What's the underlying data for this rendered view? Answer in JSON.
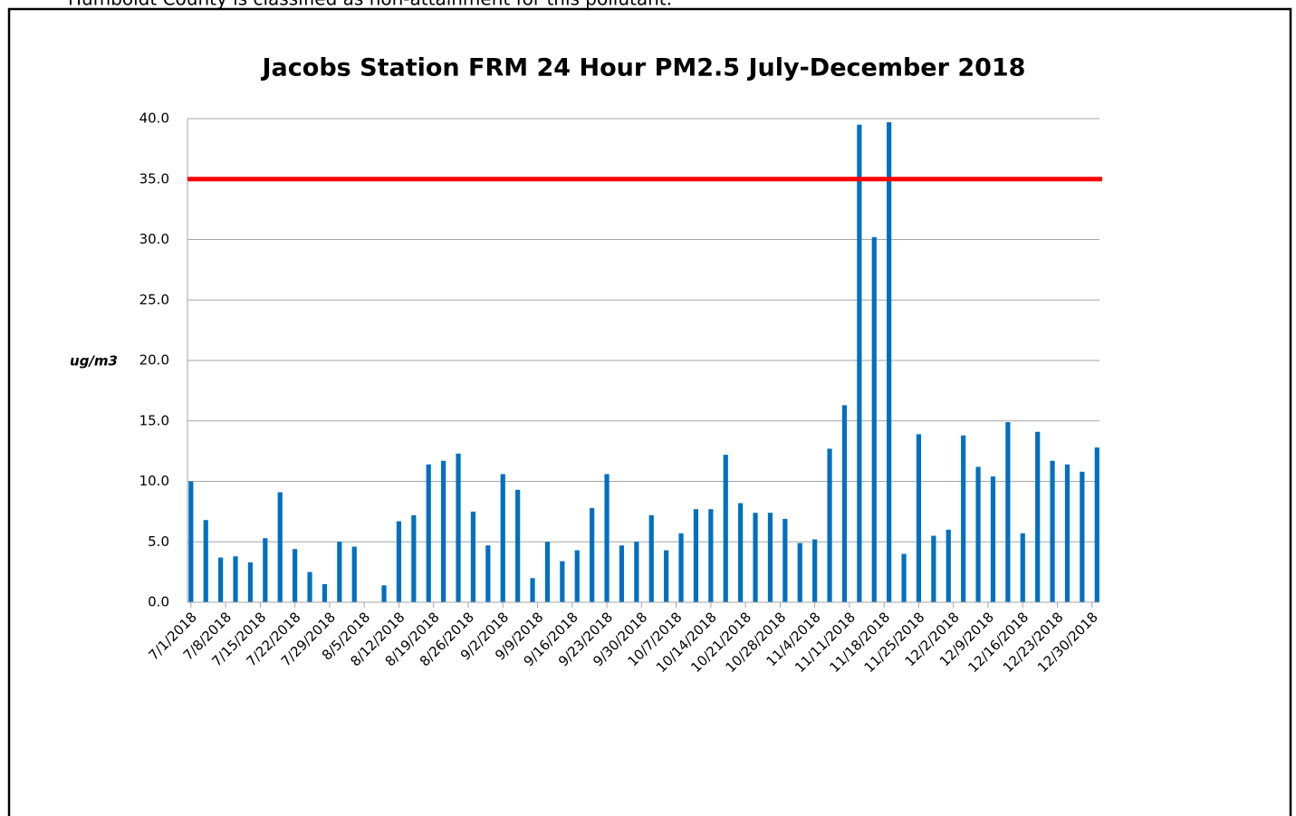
{
  "intro": "Humboldt County is classified as non-attainment for this pollutant.",
  "chart_data": {
    "type": "bar",
    "title": "Jacobs Station FRM 24 Hour PM2.5 July-December 2018",
    "ylabel": "ug/m3",
    "color": "#0070c0",
    "grid": true,
    "threshold": 35,
    "threshold_color": "#ff0000",
    "xlim": [
      -0.7,
      183.5
    ],
    "xticks": [
      {
        "value": 0,
        "label": "7/1/2018"
      },
      {
        "value": 7,
        "label": "7/8/2018"
      },
      {
        "value": 14,
        "label": "7/15/2018"
      },
      {
        "value": 21,
        "label": "7/22/2018"
      },
      {
        "value": 28,
        "label": "7/29/2018"
      },
      {
        "value": 35,
        "label": "8/5/2018"
      },
      {
        "value": 42,
        "label": "8/12/2018"
      },
      {
        "value": 49,
        "label": "8/19/2018"
      },
      {
        "value": 56,
        "label": "8/26/2018"
      },
      {
        "value": 63,
        "label": "9/2/2018"
      },
      {
        "value": 70,
        "label": "9/9/2018"
      },
      {
        "value": 77,
        "label": "9/16/2018"
      },
      {
        "value": 84,
        "label": "9/23/2018"
      },
      {
        "value": 91,
        "label": "9/30/2018"
      },
      {
        "value": 98,
        "label": "10/7/2018"
      },
      {
        "value": 105,
        "label": "10/14/2018"
      },
      {
        "value": 112,
        "label": "10/21/2018"
      },
      {
        "value": 119,
        "label": "10/28/2018"
      },
      {
        "value": 126,
        "label": "11/4/2018"
      },
      {
        "value": 133,
        "label": "11/11/2018"
      },
      {
        "value": 140,
        "label": "11/18/2018"
      },
      {
        "value": 147,
        "label": "11/25/2018"
      },
      {
        "value": 154,
        "label": "12/2/2018"
      },
      {
        "value": 161,
        "label": "12/9/2018"
      },
      {
        "value": 168,
        "label": "12/16/2018"
      },
      {
        "value": 175,
        "label": "12/23/2018"
      },
      {
        "value": 182,
        "label": "12/30/2018"
      }
    ],
    "ylim": [
      0,
      40
    ],
    "yticks": [
      {
        "value": 0,
        "label": "0.0"
      },
      {
        "value": 5,
        "label": "5.0"
      },
      {
        "value": 10,
        "label": "10.0"
      },
      {
        "value": 15,
        "label": "15.0"
      },
      {
        "value": 20,
        "label": "20.0"
      },
      {
        "value": 25,
        "label": "25.0"
      },
      {
        "value": 30,
        "label": "30.0"
      },
      {
        "value": 35,
        "label": "35.0"
      },
      {
        "value": 40,
        "label": "40.0"
      }
    ],
    "x": [
      0,
      3,
      6,
      9,
      12,
      15,
      18,
      21,
      24,
      27,
      30,
      33,
      36,
      39,
      42,
      45,
      48,
      51,
      54,
      57,
      60,
      63,
      66,
      69,
      72,
      75,
      78,
      81,
      84,
      87,
      90,
      93,
      96,
      99,
      102,
      105,
      108,
      111,
      114,
      117,
      120,
      123,
      126,
      129,
      132,
      135,
      138,
      141,
      144,
      147,
      150,
      153,
      156,
      159,
      162,
      165,
      168,
      171,
      174,
      177,
      180,
      183
    ],
    "values": [
      10.0,
      6.8,
      3.7,
      3.8,
      3.3,
      5.3,
      9.1,
      4.4,
      2.5,
      1.5,
      5.0,
      4.6,
      null,
      1.4,
      6.7,
      7.2,
      11.4,
      11.7,
      12.3,
      7.5,
      4.7,
      10.6,
      9.3,
      2.0,
      5.0,
      3.4,
      4.3,
      7.8,
      10.6,
      4.7,
      5.0,
      7.2,
      4.3,
      5.7,
      7.7,
      7.7,
      12.2,
      8.2,
      7.4,
      7.4,
      6.9,
      4.9,
      5.2,
      12.7,
      16.3,
      39.5,
      30.2,
      39.7,
      4.0,
      13.9,
      5.5,
      6.0,
      13.8,
      11.2,
      10.4,
      14.9,
      5.7,
      14.1,
      11.7,
      11.4,
      10.8,
      12.8
    ]
  }
}
